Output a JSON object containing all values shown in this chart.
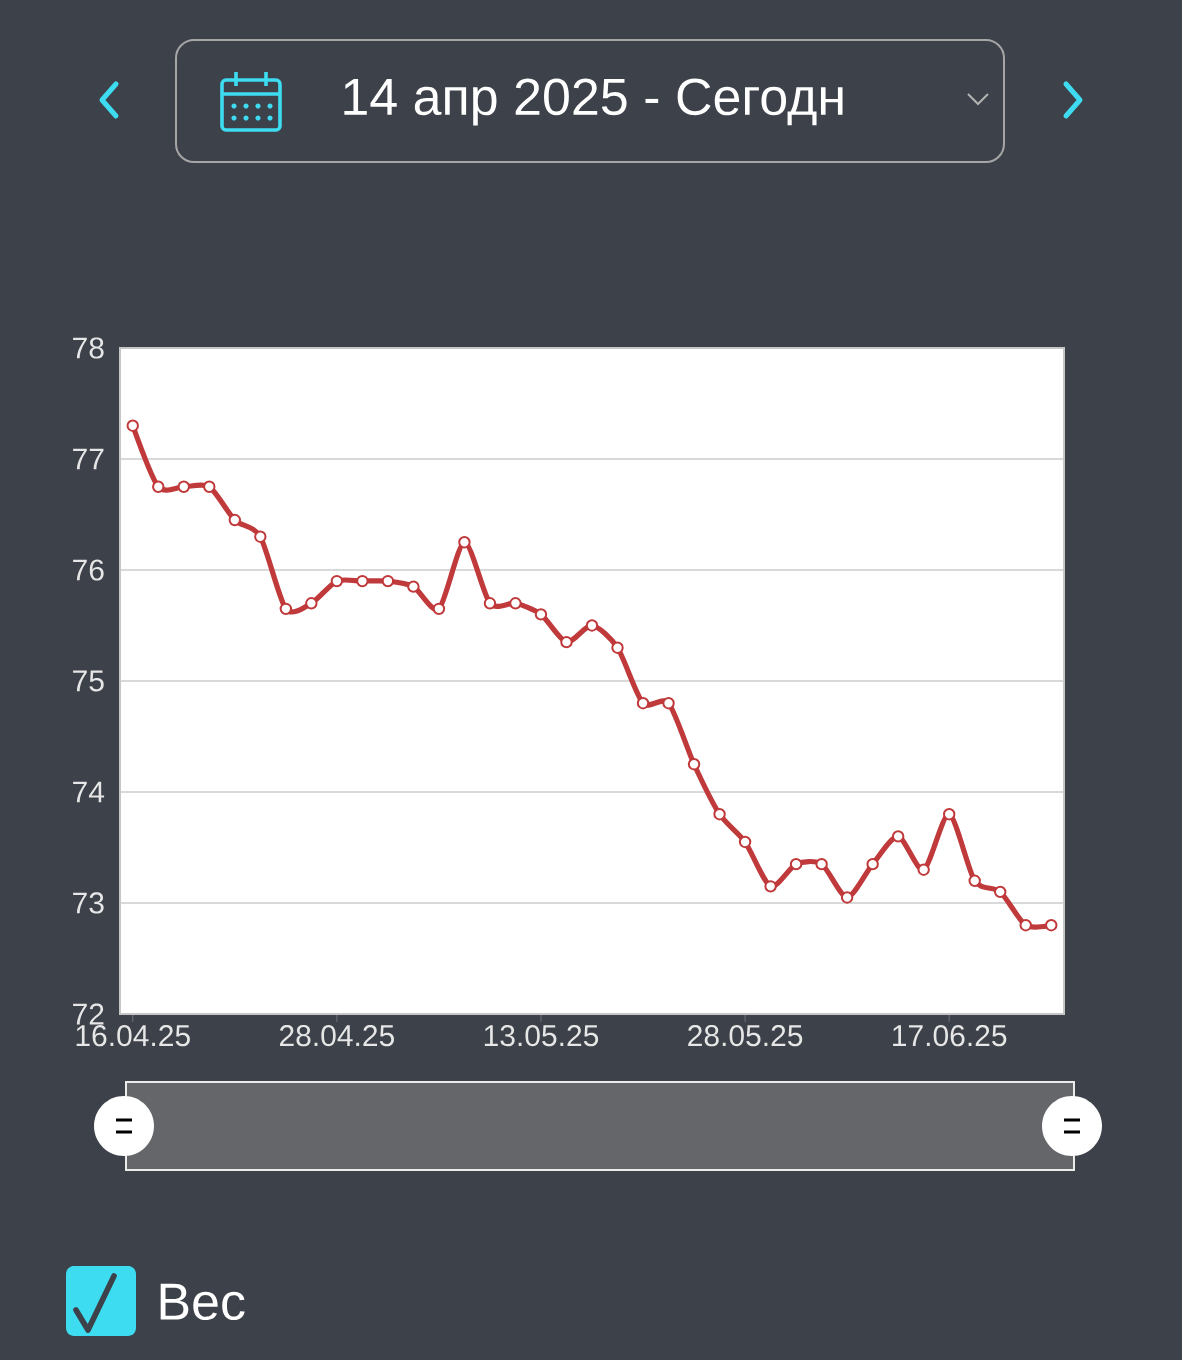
{
  "chart_data": {
    "type": "line",
    "title": "14 апр 2025 - Сегодн",
    "categories": [
      "16.04.25",
      null,
      null,
      null,
      null,
      null,
      null,
      null,
      "28.04.25",
      null,
      null,
      null,
      null,
      null,
      null,
      null,
      "13.05.25",
      null,
      null,
      null,
      null,
      null,
      null,
      null,
      "28.05.25",
      null,
      null,
      null,
      null,
      null,
      null,
      null,
      "17.06.25",
      null,
      null,
      null,
      null
    ],
    "series": [
      {
        "name": "Вес",
        "color": "#c0393b",
        "values": [
          77.3,
          76.75,
          76.75,
          76.75,
          76.45,
          76.3,
          75.65,
          75.7,
          75.9,
          75.9,
          75.9,
          75.85,
          75.65,
          76.25,
          75.7,
          75.7,
          75.6,
          75.35,
          75.5,
          75.3,
          74.8,
          74.8,
          74.25,
          73.8,
          73.55,
          73.15,
          73.35,
          73.35,
          73.05,
          73.35,
          73.6,
          73.3,
          73.8,
          73.2,
          73.1,
          72.8,
          72.8
        ]
      }
    ],
    "ylim": [
      72,
      78
    ],
    "yticks": [
      72,
      73,
      74,
      75,
      76,
      77,
      78
    ],
    "grid": "y",
    "marker": "circle",
    "line_style": "solid",
    "legend": "bottom left"
  }
}
